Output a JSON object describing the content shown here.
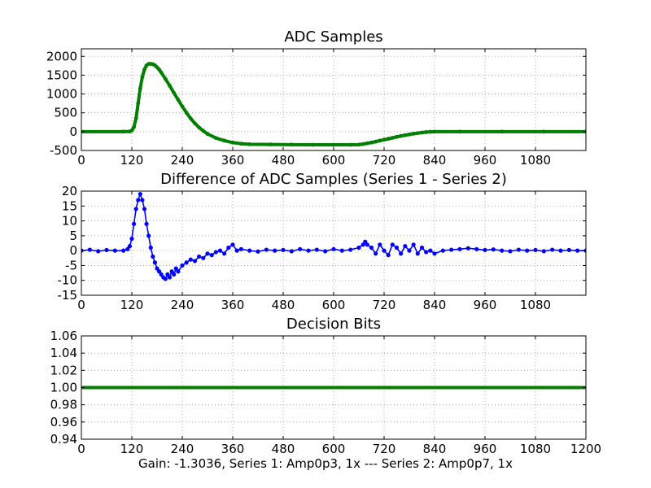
{
  "footer": "Gain: -1.3036, Series 1: Amp0p3, 1x --- Series 2: Amp0p7, 1x",
  "colors": {
    "green": "#007f00",
    "blue": "#0000ff",
    "grid": "#9a9a9a"
  },
  "chart_data": [
    {
      "type": "line",
      "title": "ADC Samples",
      "xlabel": "",
      "ylabel": "",
      "xlim": [
        0,
        1200
      ],
      "ylim": [
        -500,
        2200
      ],
      "xticks": [
        0,
        120,
        240,
        360,
        480,
        600,
        720,
        840,
        960,
        1080
      ],
      "yticks": [
        -500,
        0,
        500,
        1000,
        1500,
        2000
      ],
      "grid": true,
      "series": [
        {
          "color": "#007f00",
          "marker": "dot",
          "x": [
            0,
            100,
            115,
            120,
            125,
            130,
            135,
            140,
            145,
            150,
            155,
            160,
            165,
            170,
            175,
            180,
            185,
            190,
            200,
            210,
            220,
            230,
            240,
            250,
            260,
            270,
            280,
            290,
            300,
            320,
            340,
            360,
            380,
            400,
            450,
            500,
            550,
            600,
            640,
            660,
            670,
            680,
            690,
            700,
            710,
            720,
            730,
            740,
            750,
            760,
            770,
            780,
            790,
            800,
            810,
            820,
            830,
            840,
            900,
            1000,
            1100,
            1200
          ],
          "y": [
            0,
            0,
            5,
            30,
            120,
            350,
            750,
            1150,
            1450,
            1650,
            1760,
            1800,
            1800,
            1790,
            1760,
            1710,
            1650,
            1570,
            1400,
            1220,
            1030,
            850,
            670,
            500,
            350,
            220,
            110,
            20,
            -60,
            -170,
            -240,
            -290,
            -320,
            -335,
            -340,
            -345,
            -350,
            -350,
            -350,
            -345,
            -330,
            -310,
            -290,
            -265,
            -240,
            -215,
            -190,
            -165,
            -140,
            -115,
            -95,
            -75,
            -55,
            -40,
            -25,
            -12,
            -5,
            0,
            0,
            0,
            0,
            0
          ]
        }
      ]
    },
    {
      "type": "line",
      "title": "Difference of ADC Samples (Series 1 - Series 2)",
      "xlabel": "",
      "ylabel": "",
      "xlim": [
        0,
        1200
      ],
      "ylim": [
        -15,
        20
      ],
      "xticks": [
        0,
        120,
        240,
        360,
        480,
        600,
        720,
        840,
        960,
        1080
      ],
      "yticks": [
        -15,
        -10,
        -5,
        0,
        5,
        10,
        15,
        20
      ],
      "grid": true,
      "series": [
        {
          "color": "#0000ff",
          "marker": "dot",
          "x": [
            0,
            20,
            40,
            60,
            80,
            100,
            110,
            115,
            120,
            125,
            130,
            135,
            140,
            145,
            150,
            155,
            160,
            165,
            170,
            175,
            180,
            185,
            190,
            195,
            200,
            205,
            210,
            215,
            220,
            225,
            230,
            240,
            250,
            260,
            270,
            280,
            290,
            300,
            310,
            320,
            330,
            340,
            350,
            360,
            370,
            380,
            400,
            420,
            440,
            460,
            480,
            500,
            520,
            540,
            560,
            580,
            600,
            620,
            640,
            660,
            670,
            675,
            680,
            690,
            700,
            710,
            720,
            730,
            740,
            750,
            760,
            770,
            780,
            790,
            800,
            810,
            820,
            830,
            840,
            860,
            880,
            900,
            920,
            940,
            960,
            980,
            1000,
            1020,
            1040,
            1060,
            1080,
            1100,
            1120,
            1140,
            1160,
            1180,
            1200
          ],
          "y": [
            0,
            0.3,
            -0.2,
            0.2,
            0,
            0,
            0.5,
            1.5,
            4,
            9,
            14,
            17,
            19,
            17,
            14,
            9,
            5,
            1,
            -2,
            -4,
            -6,
            -7,
            -8,
            -9,
            -9.5,
            -8,
            -9,
            -7,
            -8,
            -6,
            -7,
            -5,
            -4,
            -3,
            -3.5,
            -2,
            -2.5,
            -1,
            -1.5,
            -0.5,
            0,
            -1,
            1,
            2,
            0,
            0.5,
            0,
            -0.3,
            0.3,
            0,
            0.2,
            -0.2,
            0.5,
            0,
            0.3,
            -0.2,
            0.5,
            0,
            0.3,
            1,
            2,
            3,
            2,
            1,
            -1,
            2,
            0,
            -1.5,
            2,
            1,
            -1,
            1.5,
            0,
            2,
            -1,
            1,
            -0.5,
            0,
            -1,
            0,
            0.3,
            0.5,
            0.8,
            0.5,
            0.2,
            0.4,
            0,
            -0.2,
            0.3,
            0,
            0.2,
            -0.2,
            0.3,
            0,
            0.2,
            0,
            0
          ]
        }
      ]
    },
    {
      "type": "line",
      "title": "Decision Bits",
      "xlabel": "",
      "ylabel": "",
      "xlim": [
        0,
        1200
      ],
      "ylim": [
        0.94,
        1.06
      ],
      "xticks": [
        0,
        120,
        240,
        360,
        480,
        600,
        720,
        840,
        960,
        1080,
        1200
      ],
      "yticks": [
        0.94,
        0.96,
        0.98,
        1.0,
        1.02,
        1.04,
        1.06
      ],
      "ytick_labels": [
        "0.94",
        "0.96",
        "0.98",
        "1.00",
        "1.02",
        "1.04",
        "1.06"
      ],
      "grid": true,
      "series": [
        {
          "color": "#007f00",
          "marker": "none",
          "x": [
            0,
            1200
          ],
          "y": [
            1.0,
            1.0
          ]
        }
      ]
    }
  ]
}
